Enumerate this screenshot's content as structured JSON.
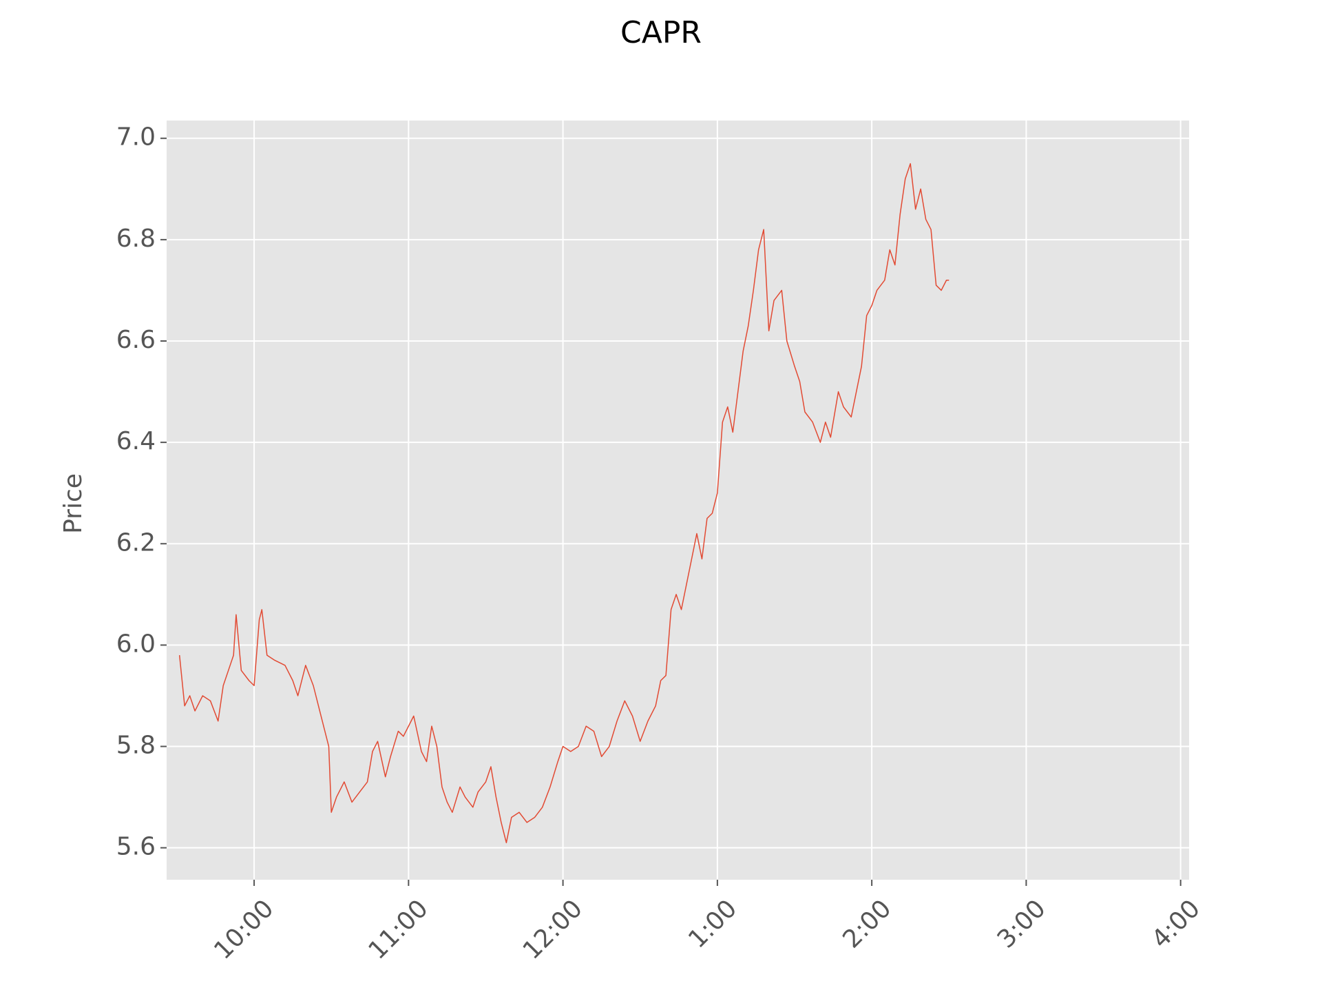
{
  "chart_data": {
    "type": "line",
    "title": "CAPR",
    "y_label": "Price",
    "x": [
      571,
      573,
      575,
      577,
      580,
      583,
      586,
      588,
      590,
      592,
      593,
      595,
      598,
      600,
      602,
      603,
      605,
      608,
      612,
      615,
      617,
      620,
      623,
      626,
      629,
      630,
      632,
      635,
      638,
      641,
      644,
      646,
      648,
      651,
      653,
      656,
      658,
      660,
      662,
      665,
      667,
      669,
      671,
      673,
      675,
      677,
      680,
      682,
      685,
      687,
      690,
      692,
      694,
      696,
      698,
      700,
      703,
      706,
      709,
      712,
      715,
      718,
      720,
      723,
      726,
      729,
      732,
      735,
      738,
      741,
      744,
      747,
      750,
      753,
      756,
      758,
      760,
      762,
      764,
      766,
      768,
      770,
      772,
      774,
      776,
      778,
      780,
      782,
      784,
      786,
      788,
      790,
      792,
      794,
      796,
      798,
      800,
      802,
      805,
      807,
      810,
      812,
      814,
      817,
      820,
      822,
      824,
      827,
      829,
      832,
      834,
      836,
      838,
      840,
      842,
      845,
      847,
      849,
      851,
      853,
      855,
      857,
      859,
      861,
      863,
      865,
      867,
      869,
      870
    ],
    "series": [
      {
        "name": "CAPR",
        "color": "#e24a33",
        "values": [
          5.98,
          5.88,
          5.9,
          5.87,
          5.9,
          5.89,
          5.85,
          5.92,
          5.95,
          5.98,
          6.06,
          5.95,
          5.93,
          5.92,
          6.05,
          6.07,
          5.98,
          5.97,
          5.96,
          5.93,
          5.9,
          5.96,
          5.92,
          5.86,
          5.8,
          5.67,
          5.7,
          5.73,
          5.69,
          5.71,
          5.73,
          5.79,
          5.81,
          5.74,
          5.78,
          5.83,
          5.82,
          5.84,
          5.86,
          5.79,
          5.77,
          5.84,
          5.8,
          5.72,
          5.69,
          5.67,
          5.72,
          5.7,
          5.68,
          5.71,
          5.73,
          5.76,
          5.7,
          5.65,
          5.61,
          5.66,
          5.67,
          5.65,
          5.66,
          5.68,
          5.72,
          5.77,
          5.8,
          5.79,
          5.8,
          5.84,
          5.83,
          5.78,
          5.8,
          5.85,
          5.89,
          5.86,
          5.81,
          5.85,
          5.88,
          5.93,
          5.94,
          6.07,
          6.1,
          6.07,
          6.12,
          6.17,
          6.22,
          6.17,
          6.25,
          6.26,
          6.3,
          6.44,
          6.47,
          6.42,
          6.5,
          6.58,
          6.63,
          6.7,
          6.78,
          6.82,
          6.62,
          6.68,
          6.7,
          6.6,
          6.55,
          6.52,
          6.46,
          6.44,
          6.4,
          6.44,
          6.41,
          6.5,
          6.47,
          6.45,
          6.5,
          6.55,
          6.65,
          6.67,
          6.7,
          6.72,
          6.78,
          6.75,
          6.85,
          6.92,
          6.95,
          6.86,
          6.9,
          6.84,
          6.82,
          6.71,
          6.7,
          6.72,
          6.72
        ]
      }
    ],
    "xlim": [
      566,
      963.3
    ],
    "xticks": [
      {
        "value": 600,
        "label": "10:00"
      },
      {
        "value": 660,
        "label": "11:00"
      },
      {
        "value": 720,
        "label": "12:00"
      },
      {
        "value": 780,
        "label": "1:00"
      },
      {
        "value": 840,
        "label": "2:00"
      },
      {
        "value": 900,
        "label": "3:00"
      },
      {
        "value": 960,
        "label": "4:00"
      }
    ],
    "ylim": [
      5.537,
      7.035
    ],
    "yticks": [
      {
        "value": 5.6,
        "label": "5.6"
      },
      {
        "value": 5.8,
        "label": "5.8"
      },
      {
        "value": 6.0,
        "label": "6.0"
      },
      {
        "value": 6.2,
        "label": "6.2"
      },
      {
        "value": 6.4,
        "label": "6.4"
      },
      {
        "value": 6.6,
        "label": "6.6"
      },
      {
        "value": 6.8,
        "label": "6.8"
      },
      {
        "value": 7.0,
        "label": "7.0"
      }
    ],
    "grid": true
  }
}
